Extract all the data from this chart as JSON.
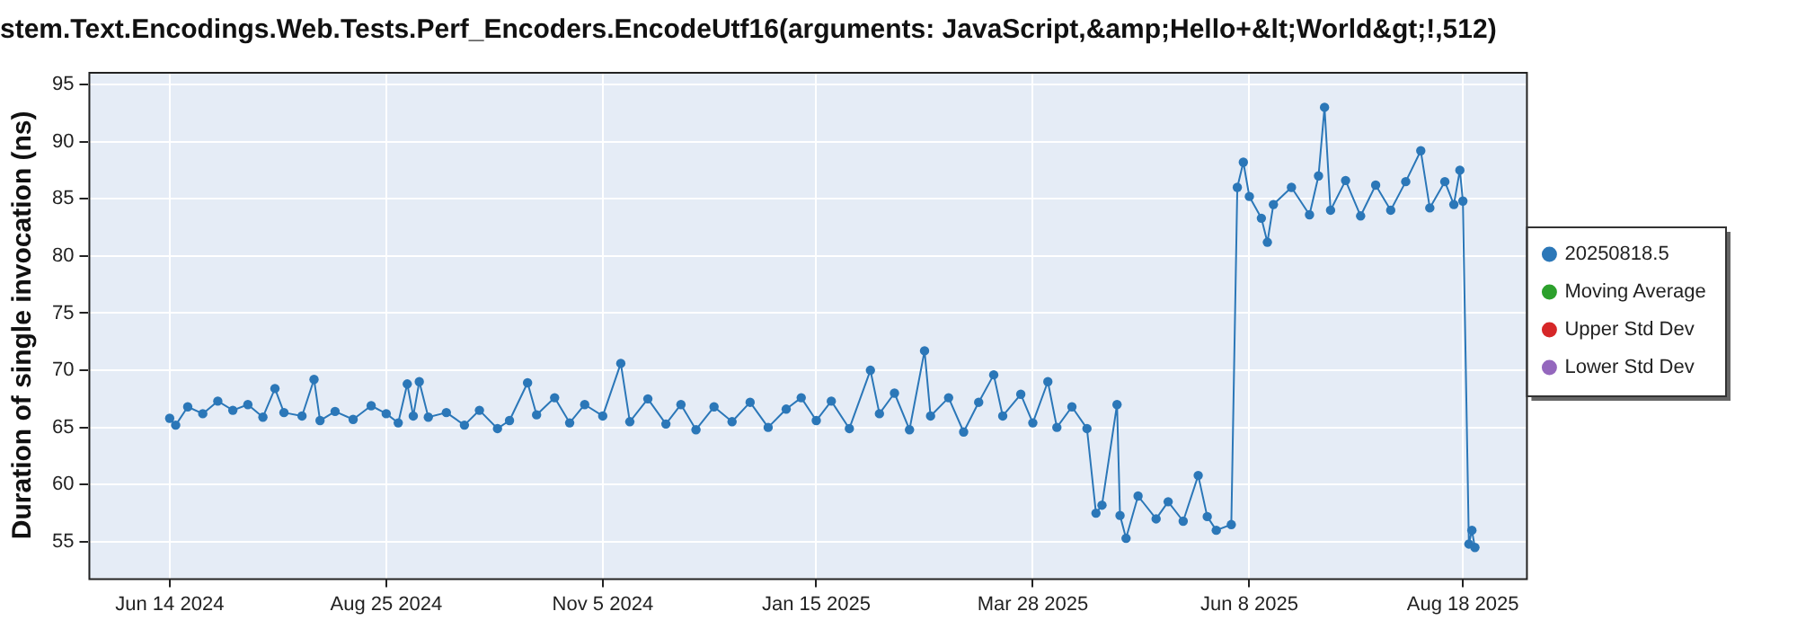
{
  "chart_data": {
    "type": "line",
    "title": "stem.Text.Encodings.Web.Tests.Perf_Encoders.EncodeUtf16(arguments: JavaScript,&amp;Hello+&lt;World&gt;!,512)",
    "ylabel": "Duration of single invocation (ns)",
    "x": [
      "2024-06-14",
      "2024-06-16",
      "2024-06-20",
      "2024-06-25",
      "2024-06-30",
      "2024-07-05",
      "2024-07-10",
      "2024-07-15",
      "2024-07-19",
      "2024-07-22",
      "2024-07-28",
      "2024-08-01",
      "2024-08-03",
      "2024-08-08",
      "2024-08-14",
      "2024-08-20",
      "2024-08-25",
      "2024-08-29",
      "2024-09-01",
      "2024-09-03",
      "2024-09-05",
      "2024-09-08",
      "2024-09-14",
      "2024-09-20",
      "2024-09-25",
      "2024-10-01",
      "2024-10-05",
      "2024-10-11",
      "2024-10-14",
      "2024-10-20",
      "2024-10-25",
      "2024-10-30",
      "2024-11-05",
      "2024-11-11",
      "2024-11-14",
      "2024-11-20",
      "2024-11-26",
      "2024-12-01",
      "2024-12-06",
      "2024-12-12",
      "2024-12-18",
      "2024-12-24",
      "2024-12-30",
      "2025-01-05",
      "2025-01-10",
      "2025-01-15",
      "2025-01-20",
      "2025-01-26",
      "2025-02-02",
      "2025-02-05",
      "2025-02-10",
      "2025-02-15",
      "2025-02-20",
      "2025-02-22",
      "2025-02-28",
      "2025-03-05",
      "2025-03-10",
      "2025-03-15",
      "2025-03-18",
      "2025-03-24",
      "2025-03-28",
      "2025-04-02",
      "2025-04-05",
      "2025-04-10",
      "2025-04-15",
      "2025-04-18",
      "2025-04-20",
      "2025-04-25",
      "2025-04-26",
      "2025-04-28",
      "2025-05-02",
      "2025-05-08",
      "2025-05-12",
      "2025-05-17",
      "2025-05-22",
      "2025-05-25",
      "2025-05-28",
      "2025-06-02",
      "2025-06-04",
      "2025-06-06",
      "2025-06-08",
      "2025-06-12",
      "2025-06-14",
      "2025-06-16",
      "2025-06-22",
      "2025-06-28",
      "2025-07-01",
      "2025-07-03",
      "2025-07-05",
      "2025-07-10",
      "2025-07-15",
      "2025-07-20",
      "2025-07-25",
      "2025-07-30",
      "2025-08-04",
      "2025-08-07",
      "2025-08-12",
      "2025-08-15",
      "2025-08-17",
      "2025-08-18",
      "2025-08-20",
      "2025-08-21",
      "2025-08-22"
    ],
    "series": [
      {
        "name": "20250818.5",
        "color": "#2b77b8",
        "values": [
          65.8,
          65.2,
          66.8,
          66.2,
          67.3,
          66.5,
          67.0,
          65.9,
          68.4,
          66.3,
          66.0,
          69.2,
          65.6,
          66.4,
          65.7,
          66.9,
          66.2,
          65.4,
          68.8,
          66.0,
          69.0,
          65.9,
          66.3,
          65.2,
          66.5,
          64.9,
          65.6,
          68.9,
          66.1,
          67.6,
          65.4,
          67.0,
          66.0,
          70.6,
          65.5,
          67.5,
          65.3,
          67.0,
          64.8,
          66.8,
          65.5,
          67.2,
          65.0,
          66.6,
          67.6,
          65.6,
          67.3,
          64.9,
          70.0,
          66.2,
          68.0,
          64.8,
          71.7,
          66.0,
          67.6,
          64.6,
          67.2,
          69.6,
          66.0,
          67.9,
          65.4,
          69.0,
          65.0,
          66.8,
          64.9,
          57.5,
          58.2,
          67.0,
          57.3,
          55.3,
          59.0,
          57.0,
          58.5,
          56.8,
          60.8,
          57.2,
          56.0,
          56.5,
          86.0,
          88.2,
          85.2,
          83.3,
          81.2,
          84.5,
          86.0,
          83.6,
          87.0,
          93.0,
          84.0,
          86.6,
          83.5,
          86.2,
          84.0,
          86.5,
          89.2,
          84.2,
          86.5,
          84.5,
          87.5,
          84.8,
          54.8,
          56.0,
          54.5
        ]
      },
      {
        "name": "Moving Average",
        "color": "#2ca02c",
        "values": [
          null,
          null,
          null,
          null,
          null,
          null,
          null,
          null,
          null,
          null,
          null,
          null,
          null,
          null,
          null,
          null,
          null,
          null,
          null,
          null,
          null,
          null,
          null,
          null,
          null,
          null,
          null,
          null,
          null,
          null,
          null,
          null,
          null,
          null,
          null,
          null,
          null,
          null,
          null,
          null,
          null,
          null,
          null,
          null,
          null,
          null,
          null,
          null,
          null,
          null,
          null,
          null,
          null,
          null,
          null,
          null,
          null,
          null,
          null,
          null,
          null,
          null,
          null,
          null,
          null,
          null,
          null,
          null,
          null,
          null,
          null,
          null,
          null,
          null,
          null,
          null,
          null,
          null,
          null,
          null,
          null,
          null,
          null,
          null,
          null,
          null,
          null,
          null,
          null,
          null,
          null,
          null,
          null,
          null,
          null,
          null,
          null,
          null,
          null,
          null,
          null,
          null,
          null
        ]
      },
      {
        "name": "Upper Std Dev",
        "color": "#d62728",
        "values": [
          null,
          null,
          null,
          null,
          null,
          null,
          null,
          null,
          null,
          null,
          null,
          null,
          null,
          null,
          null,
          null,
          null,
          null,
          null,
          null,
          null,
          null,
          null,
          null,
          null,
          null,
          null,
          null,
          null,
          null,
          null,
          null,
          null,
          null,
          null,
          null,
          null,
          null,
          null,
          null,
          null,
          null,
          null,
          null,
          null,
          null,
          null,
          null,
          null,
          null,
          null,
          null,
          null,
          null,
          null,
          null,
          null,
          null,
          null,
          null,
          null,
          null,
          null,
          null,
          null,
          null,
          null,
          null,
          null,
          null,
          null,
          null,
          null,
          null,
          null,
          null,
          null,
          null,
          null,
          null,
          null,
          null,
          null,
          null,
          null,
          null,
          null,
          null,
          null,
          null,
          null,
          null,
          null,
          null,
          null,
          null,
          null,
          null,
          null,
          null,
          null,
          null,
          null
        ]
      },
      {
        "name": "Lower Std Dev",
        "color": "#9467bd",
        "values": [
          null,
          null,
          null,
          null,
          null,
          null,
          null,
          null,
          null,
          null,
          null,
          null,
          null,
          null,
          null,
          null,
          null,
          null,
          null,
          null,
          null,
          null,
          null,
          null,
          null,
          null,
          null,
          null,
          null,
          null,
          null,
          null,
          null,
          null,
          null,
          null,
          null,
          null,
          null,
          null,
          null,
          null,
          null,
          null,
          null,
          null,
          null,
          null,
          null,
          null,
          null,
          null,
          null,
          null,
          null,
          null,
          null,
          null,
          null,
          null,
          null,
          null,
          null,
          null,
          null,
          null,
          null,
          null,
          null,
          null,
          null,
          null,
          null,
          null,
          null,
          null,
          null,
          null,
          null,
          null,
          null,
          null,
          null,
          null,
          null,
          null,
          null,
          null,
          null,
          null,
          null,
          null,
          null,
          null,
          null,
          null,
          null,
          null,
          null,
          null,
          null,
          null,
          null
        ]
      }
    ],
    "xlim": [
      "2024-05-18",
      "2025-09-08"
    ],
    "xticks": [
      {
        "value": "2024-06-14",
        "label": "Jun 14 2024"
      },
      {
        "value": "2024-08-25",
        "label": "Aug 25 2024"
      },
      {
        "value": "2024-11-05",
        "label": "Nov 5 2024"
      },
      {
        "value": "2025-01-15",
        "label": "Jan 15 2025"
      },
      {
        "value": "2025-03-28",
        "label": "Mar 28 2025"
      },
      {
        "value": "2025-06-08",
        "label": "Jun 8 2025"
      },
      {
        "value": "2025-08-18",
        "label": "Aug 18 2025"
      }
    ],
    "ylim": [
      51.8,
      96.1
    ],
    "yticks": [
      55,
      60,
      65,
      70,
      75,
      80,
      85,
      90,
      95
    ],
    "grid": true,
    "legend": "right",
    "marker": "circle",
    "line_style": "solid"
  }
}
